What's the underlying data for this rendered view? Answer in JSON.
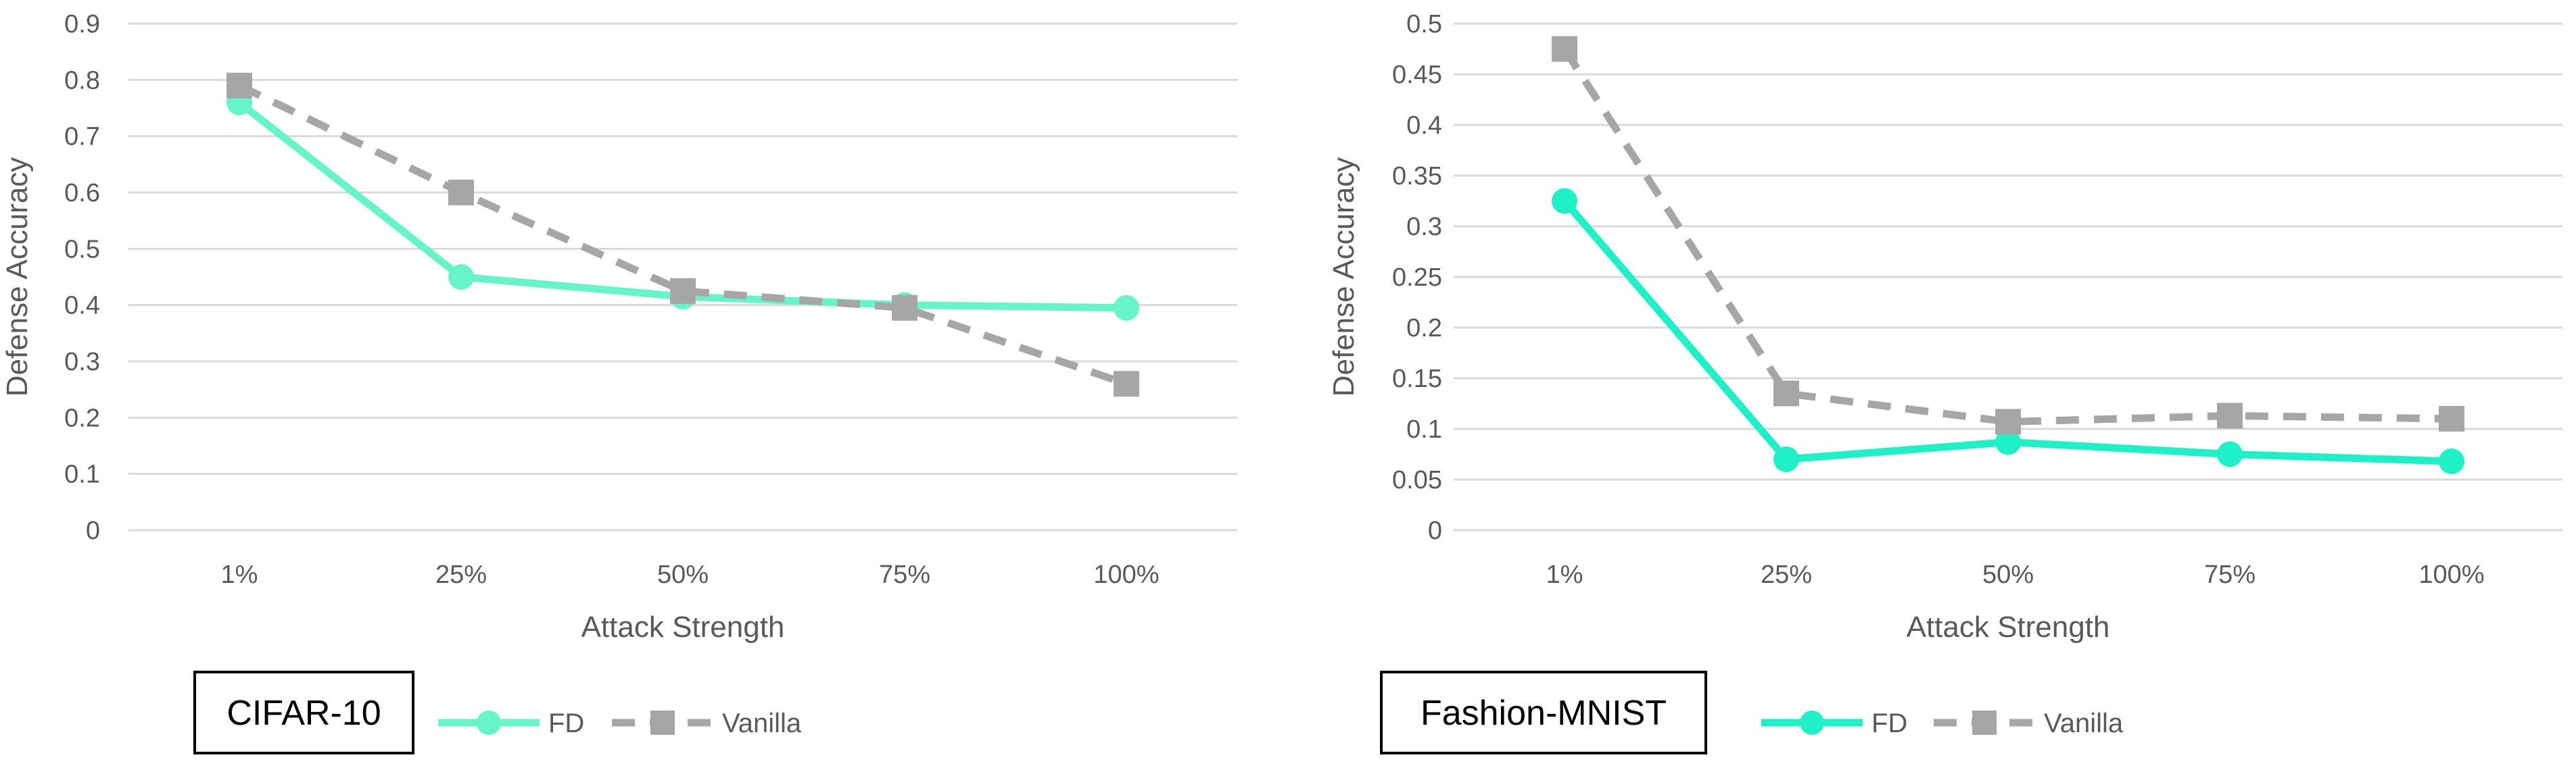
{
  "chart_data": [
    {
      "type": "line",
      "title": "",
      "xlabel": "Attack Strength",
      "ylabel": "Defense Accuracy",
      "categories": [
        "1%",
        "25%",
        "50%",
        "75%",
        "100%"
      ],
      "ylim": [
        0,
        0.9
      ],
      "yticks": [
        "0",
        "0.1",
        "0.2",
        "0.3",
        "0.4",
        "0.5",
        "0.6",
        "0.7",
        "0.8",
        "0.9"
      ],
      "grid": true,
      "legend_position": "bottom",
      "caption_box": "CIFAR-10",
      "series": [
        {
          "name": "FD",
          "values": [
            0.76,
            0.45,
            0.415,
            0.4,
            0.395
          ],
          "color": "#66f5c8",
          "style": "solid",
          "marker": "circle"
        },
        {
          "name": "Vanilla",
          "values": [
            0.79,
            0.6,
            0.425,
            0.395,
            0.26
          ],
          "color": "#a6a6a6",
          "style": "dashed",
          "marker": "square"
        }
      ]
    },
    {
      "type": "line",
      "title": "",
      "xlabel": "Attack Strength",
      "ylabel": "Defense Accuracy",
      "categories": [
        "1%",
        "25%",
        "50%",
        "75%",
        "100%"
      ],
      "ylim": [
        0,
        0.5
      ],
      "yticks": [
        "0",
        "0.05",
        "0.1",
        "0.15",
        "0.2",
        "0.25",
        "0.3",
        "0.35",
        "0.4",
        "0.45",
        "0.5"
      ],
      "grid": true,
      "legend_position": "bottom",
      "caption_box": "Fashion-MNIST",
      "series": [
        {
          "name": "FD",
          "values": [
            0.325,
            0.07,
            0.087,
            0.075,
            0.068
          ],
          "color": "#1ef0c8",
          "style": "solid",
          "marker": "circle"
        },
        {
          "name": "Vanilla",
          "values": [
            0.475,
            0.135,
            0.107,
            0.113,
            0.11
          ],
          "color": "#a6a6a6",
          "style": "dashed",
          "marker": "square"
        }
      ]
    }
  ]
}
